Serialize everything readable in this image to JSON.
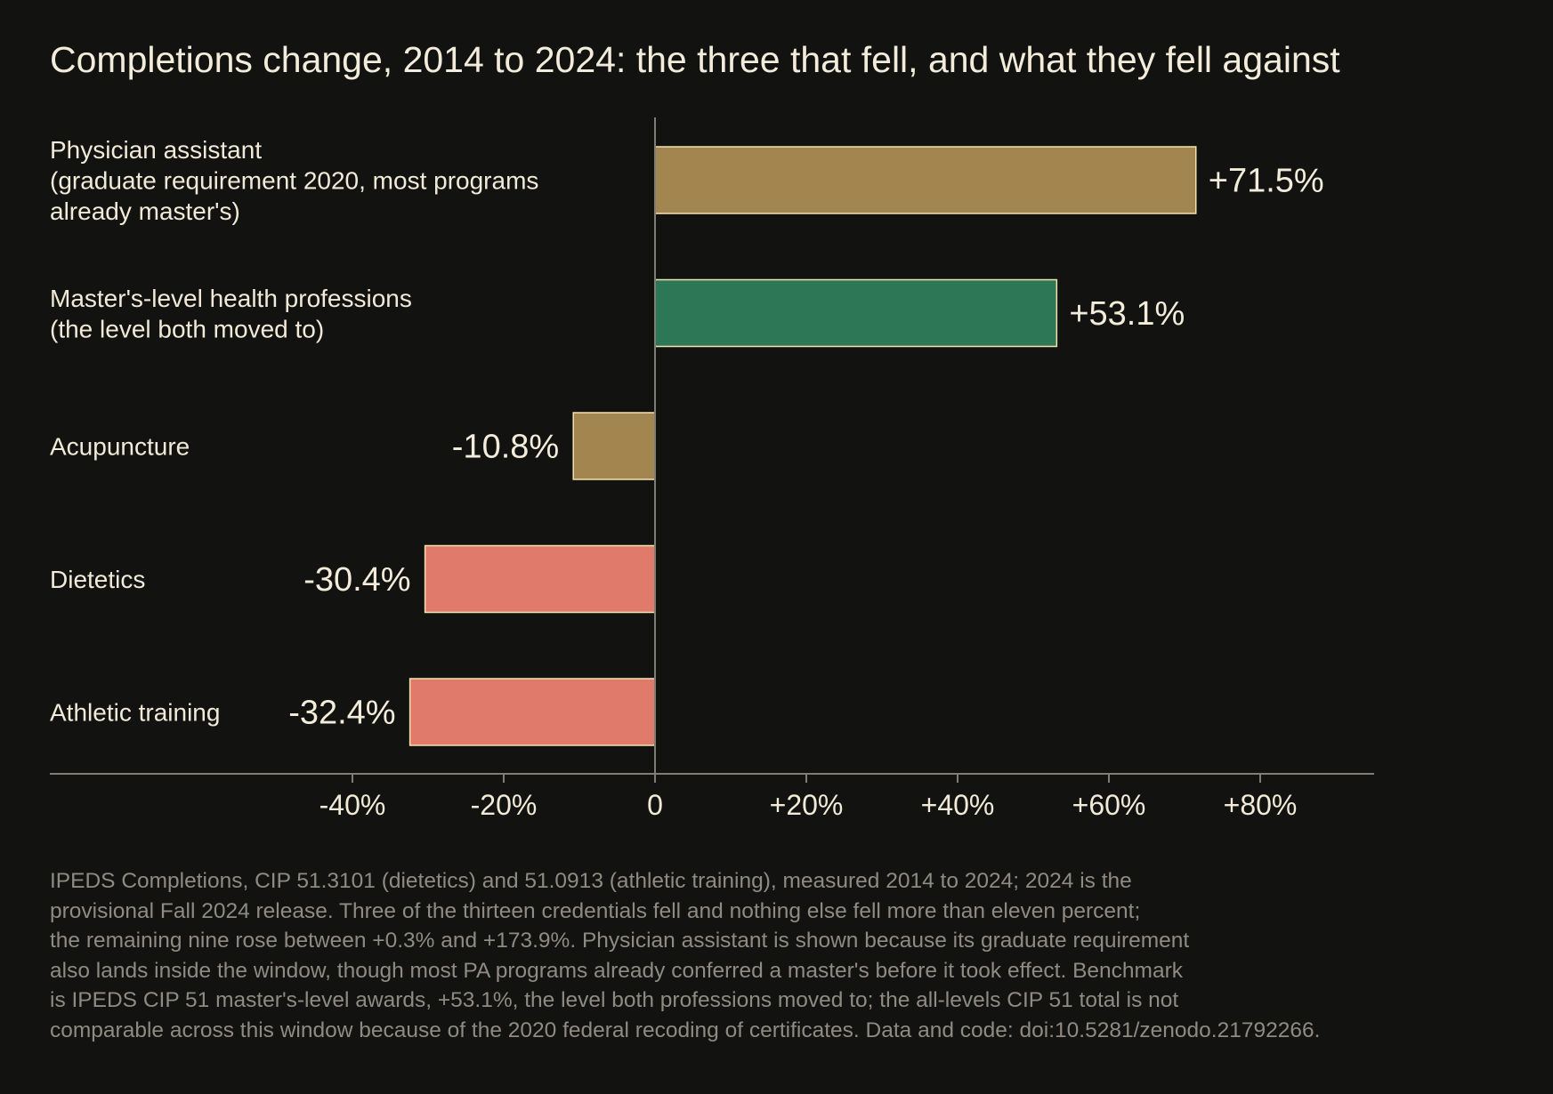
{
  "chart_data": {
    "type": "bar",
    "orientation": "horizontal",
    "title": "Completions change, 2014 to 2024: the three that fell, and what they fell against",
    "xlabel": "",
    "ylabel": "",
    "xlim": [
      -40,
      95
    ],
    "grid": false,
    "legend": "none",
    "categories": [
      [
        "Physician assistant",
        "(graduate requirement 2020, most programs",
        "already master's)"
      ],
      [
        "Master's-level health professions",
        "(the level both moved to)"
      ],
      [
        "Acupuncture"
      ],
      [
        "Dietetics"
      ],
      [
        "Athletic training"
      ]
    ],
    "values": [
      71.5,
      53.1,
      -10.8,
      -30.4,
      -32.4
    ],
    "value_labels": [
      "+71.5%",
      "+53.1%",
      "-10.8%",
      "-30.4%",
      "-32.4%"
    ],
    "bar_colors": [
      "#a3854f",
      "#2d7656",
      "#a3854f",
      "#e07b6c",
      "#e07b6c"
    ],
    "bar_outline": "#f3e3b0",
    "ticks": [
      -40,
      -20,
      0,
      20,
      40,
      60,
      80
    ],
    "tick_labels": [
      "-40%",
      "-20%",
      "0",
      "+20%",
      "+40%",
      "+60%",
      "+80%"
    ]
  },
  "footnote": "IPEDS Completions, CIP 51.3101 (dietetics) and 51.0913 (athletic training), measured 2014 to 2024; 2024 is the\nprovisional Fall 2024 release. Three of the thirteen credentials fell and nothing else fell more than eleven percent;\nthe remaining nine rose between +0.3% and +173.9%. Physician assistant is shown because its graduate requirement\nalso lands inside the window, though most PA programs already conferred a master's before it took effect. Benchmark\nis IPEDS CIP 51 master's-level awards, +53.1%, the level both professions moved to; the all-levels CIP 51 total is not\ncomparable across this window because of the 2020 federal recoding of certificates. Data and code: doi:10.5281/zenodo.21792266.",
  "colors": {
    "background": "#121210",
    "text": "#f1ead8",
    "footnote": "#8f8b82",
    "axis": "#7f7d76"
  }
}
